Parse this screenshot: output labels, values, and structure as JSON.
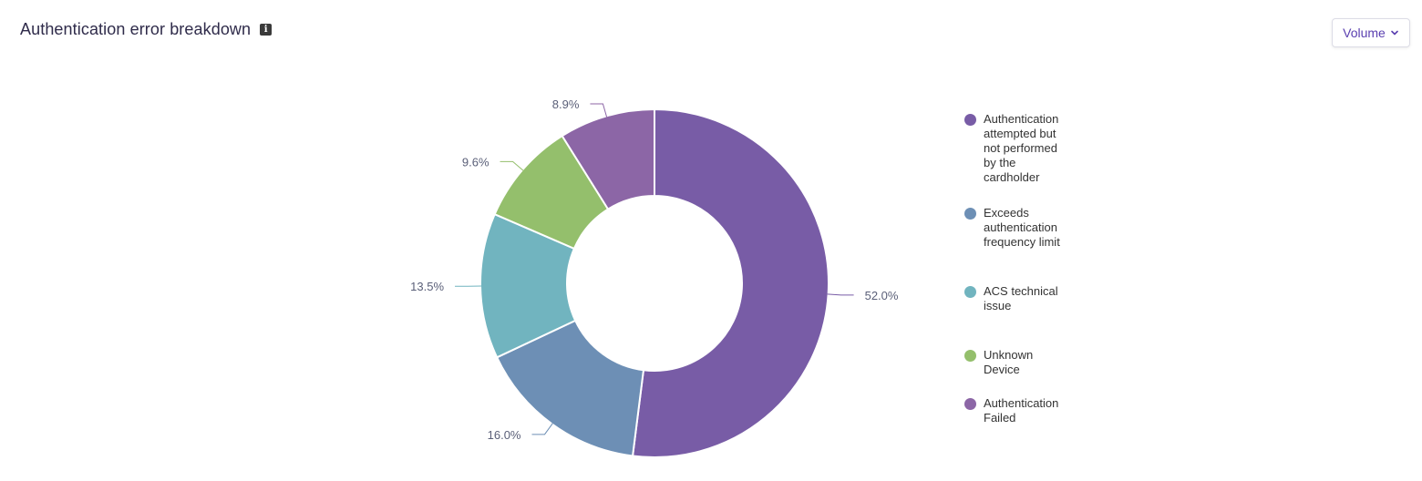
{
  "header": {
    "title": "Authentication error breakdown",
    "info_icon": "info-icon"
  },
  "dropdown": {
    "label": "Volume",
    "icon": "chevron-down-icon"
  },
  "colors": {
    "purple": "#785ca6",
    "blue": "#6d8fb5",
    "teal": "#71b4bf",
    "green": "#94bf6c",
    "violet": "#8c66a6"
  },
  "chart_data": {
    "type": "pie",
    "donut": true,
    "title": "Authentication error breakdown",
    "legend_position": "right",
    "slices": [
      {
        "label": "Authentication attempted but not performed by the cardholder",
        "value": 52.0,
        "display": "52.0%",
        "color": "#785ca6"
      },
      {
        "label": "Exceeds authentication frequency limit",
        "value": 16.0,
        "display": "16.0%",
        "color": "#6d8fb5"
      },
      {
        "label": "ACS technical issue",
        "value": 13.5,
        "display": "13.5%",
        "color": "#71b4bf"
      },
      {
        "label": "Unknown Device",
        "value": 9.6,
        "display": "9.6%",
        "color": "#94bf6c"
      },
      {
        "label": "Authentication Failed",
        "value": 8.9,
        "display": "8.9%",
        "color": "#8c66a6"
      }
    ]
  }
}
